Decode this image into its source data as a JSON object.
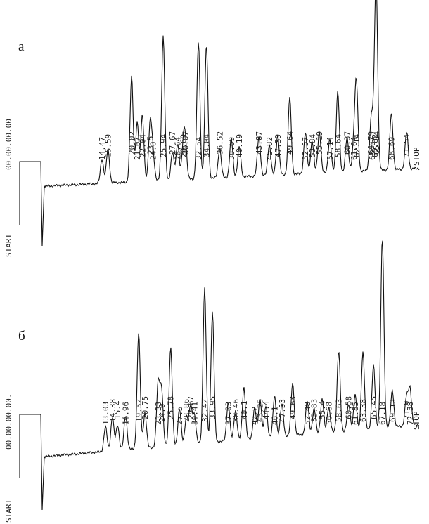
{
  "panels": [
    {
      "label": "а",
      "start": "START",
      "time": "00.00.00.00",
      "peaks": [
        "14.47",
        "15.59",
        "20.02",
        "21.07",
        "22.04",
        "23.5",
        "24.0",
        "25.94",
        "27.67",
        "28.64",
        "29.69",
        "30.07",
        "32.54",
        "34.04",
        "36.52",
        "38.69",
        "40.19",
        "43.87",
        "45.82",
        "47.39",
        "49.64",
        "52.57",
        "53.84",
        "55.19",
        "57.14",
        "58.64",
        "60.37",
        "61.64",
        "62.14",
        "64.79",
        "65.07",
        "65.62",
        "65.84",
        "68.69",
        "71.54"
      ],
      "stop": "STOP"
    },
    {
      "label": "б",
      "start": "START",
      "time": "00.00.00.00.",
      "peaks": [
        "13.03",
        "14.38",
        "15.4",
        "16.96",
        "19.52",
        "20.75",
        "23.33",
        "24.0",
        "25.78",
        "27.5",
        "28.86",
        "29.67",
        "30.41",
        "32.42",
        "33.95",
        "37.03",
        "38.46",
        "40.1",
        "42.2",
        "43.25",
        "44.4",
        "46.1",
        "47.53",
        "49.63",
        "52.48",
        "53.83",
        "55.4",
        "56.68",
        "58.63",
        "60.58",
        "61.85",
        "63.38",
        "65.45",
        "67.18",
        "69.13",
        "71.9",
        "72.58"
      ],
      "stop": "STOP"
    }
  ]
}
